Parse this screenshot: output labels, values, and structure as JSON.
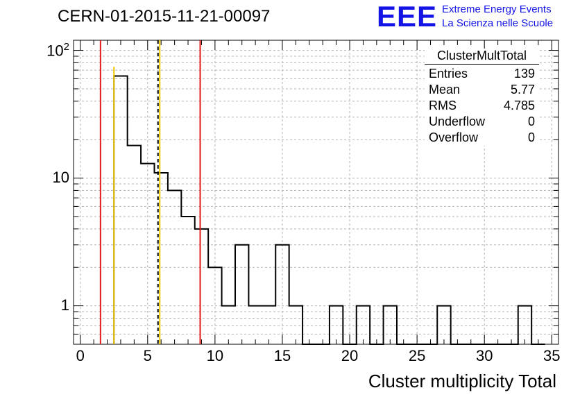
{
  "header": {
    "title": "CERN-01-2015-11-21-00097"
  },
  "logo": {
    "mark": "EEE",
    "line1": "Extreme Energy Events",
    "line2": "La Scienza nelle Scuole",
    "color": "#1414e6"
  },
  "stats_box": {
    "title": "ClusterMultTotal",
    "rows": [
      {
        "label": "Entries",
        "value": "139"
      },
      {
        "label": "Mean",
        "value": "5.77"
      },
      {
        "label": "RMS",
        "value": "4.785"
      },
      {
        "label": "Underflow",
        "value": "0"
      },
      {
        "label": "Overflow",
        "value": "0"
      }
    ]
  },
  "chart_data": {
    "type": "bar",
    "style": "step-histogram",
    "xlabel": "Cluster multiplicity Total",
    "ylabel": "",
    "xlim": [
      -0.5,
      35.5
    ],
    "ylim": [
      0.5,
      120
    ],
    "y_scale": "log",
    "grid": true,
    "x_tick_labels": [
      "0",
      "5",
      "10",
      "15",
      "20",
      "25",
      "30",
      "35"
    ],
    "y_tick_labels": [
      {
        "value": 1,
        "base": "1",
        "exp": ""
      },
      {
        "value": 10,
        "base": "10",
        "exp": ""
      },
      {
        "value": 100,
        "base": "10",
        "exp": "2"
      }
    ],
    "bin_width": 1,
    "bins": [
      {
        "x": 3,
        "count": 63
      },
      {
        "x": 4,
        "count": 18
      },
      {
        "x": 5,
        "count": 13
      },
      {
        "x": 6,
        "count": 11
      },
      {
        "x": 7,
        "count": 8
      },
      {
        "x": 8,
        "count": 5
      },
      {
        "x": 9,
        "count": 4
      },
      {
        "x": 10,
        "count": 2
      },
      {
        "x": 11,
        "count": 1
      },
      {
        "x": 12,
        "count": 3
      },
      {
        "x": 13,
        "count": 1
      },
      {
        "x": 14,
        "count": 1
      },
      {
        "x": 15,
        "count": 3
      },
      {
        "x": 16,
        "count": 1
      },
      {
        "x": 17,
        "count": 0
      },
      {
        "x": 18,
        "count": 0
      },
      {
        "x": 19,
        "count": 1
      },
      {
        "x": 20,
        "count": 0
      },
      {
        "x": 21,
        "count": 1
      },
      {
        "x": 22,
        "count": 0
      },
      {
        "x": 23,
        "count": 1
      },
      {
        "x": 24,
        "count": 0
      },
      {
        "x": 25,
        "count": 0
      },
      {
        "x": 26,
        "count": 0
      },
      {
        "x": 27,
        "count": 1
      },
      {
        "x": 28,
        "count": 0
      },
      {
        "x": 29,
        "count": 0
      },
      {
        "x": 30,
        "count": 0
      },
      {
        "x": 31,
        "count": 0
      },
      {
        "x": 32,
        "count": 0
      },
      {
        "x": 33,
        "count": 1
      },
      {
        "x": 34,
        "count": 0
      }
    ],
    "vertical_lines": [
      {
        "x": 1.5,
        "color": "#e31a1c",
        "style": "solid"
      },
      {
        "x": 2.5,
        "color": "#f0c800",
        "style": "solid"
      },
      {
        "x": 5.77,
        "color": "#000000",
        "style": "dashed"
      },
      {
        "x": 5.9,
        "color": "#f0c800",
        "style": "solid"
      },
      {
        "x": 8.9,
        "color": "#e31a1c",
        "style": "solid"
      }
    ]
  }
}
